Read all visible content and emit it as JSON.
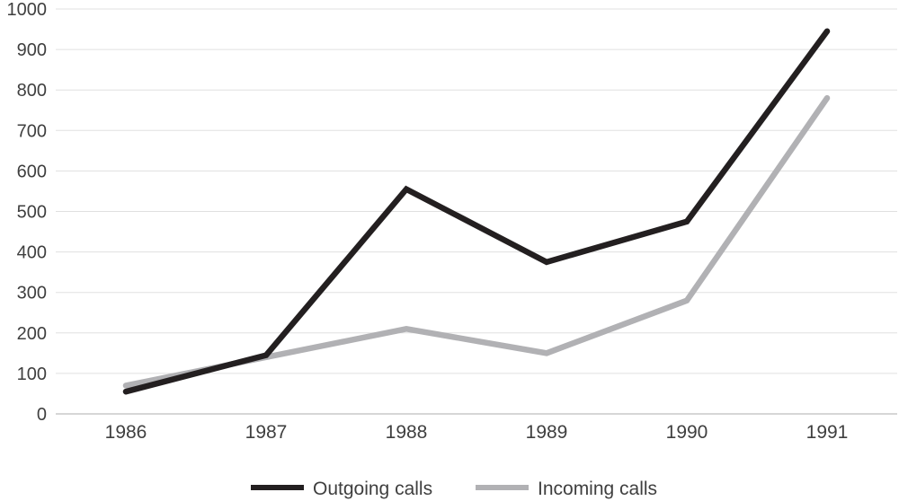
{
  "chart_data": {
    "type": "line",
    "title": "",
    "xlabel": "",
    "ylabel": "",
    "categories": [
      "1986",
      "1987",
      "1988",
      "1989",
      "1990",
      "1991"
    ],
    "series": [
      {
        "name": "Outgoing calls",
        "color": "#231f20",
        "values": [
          55,
          145,
          555,
          375,
          475,
          945
        ]
      },
      {
        "name": "Incoming calls",
        "color": "#b1b1b4",
        "values": [
          70,
          140,
          210,
          150,
          280,
          780
        ]
      }
    ],
    "ylim": [
      0,
      1000
    ],
    "ytick_step": 100,
    "ytick_labels": [
      "0",
      "100",
      "200",
      "300",
      "400",
      "500",
      "600",
      "700",
      "800",
      "900",
      "1000"
    ],
    "grid": true,
    "legend_position": "bottom"
  },
  "colors": {
    "background": "#ffffff",
    "gridline": "#e0e0e0",
    "axis_line": "#c9c9c9",
    "tick_label": "#3f3f3f"
  }
}
